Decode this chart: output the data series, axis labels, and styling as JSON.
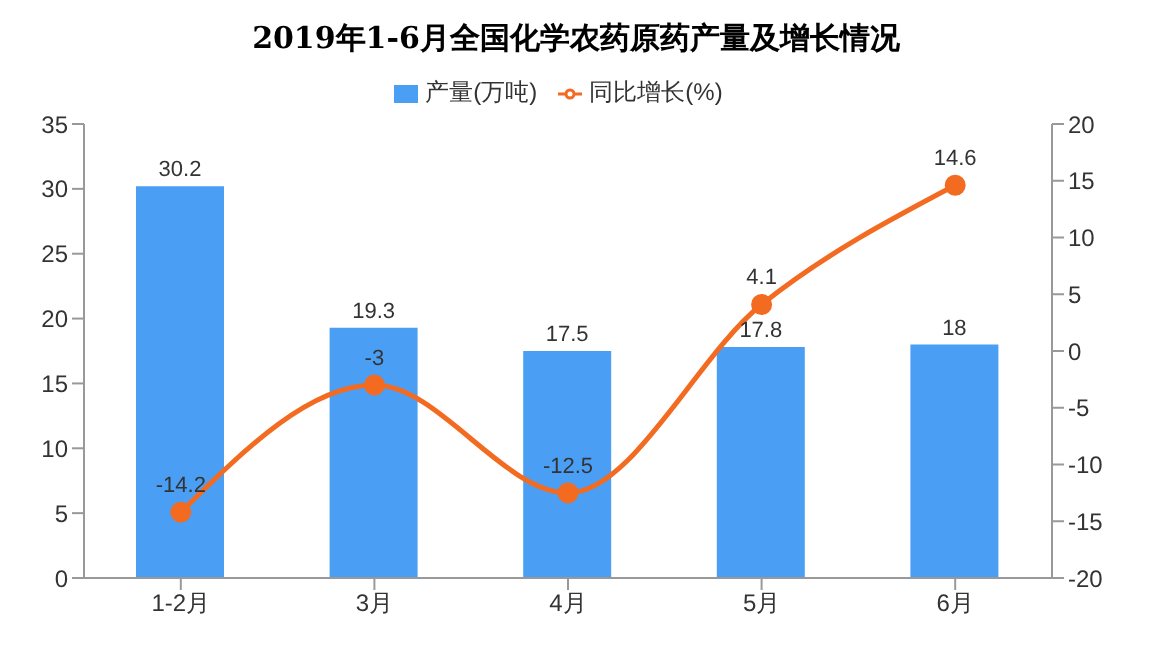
{
  "chart_data": {
    "type": "bar",
    "title": "2019年1-6月全国化学农药原药产量及增长情况",
    "categories": [
      "1-2月",
      "3月",
      "4月",
      "5月",
      "6月"
    ],
    "series": [
      {
        "name": "产量(万吨)",
        "color": "#4a9ff5",
        "values": [
          30.2,
          19.3,
          17.5,
          17.8,
          18
        ]
      },
      {
        "name": "同比增长(%)",
        "type": "line",
        "axis": "y2",
        "color": "#f26b21",
        "values": [
          -14.2,
          -3,
          -12.5,
          4.1,
          14.6
        ]
      }
    ],
    "ylim": [
      0,
      35
    ],
    "yticks": [
      0,
      5,
      10,
      15,
      20,
      25,
      30,
      35
    ],
    "y2lim": [
      -20,
      20
    ],
    "y2ticks": [
      -20,
      -15,
      -10,
      -5,
      0,
      5,
      10,
      15,
      20
    ],
    "legend": "top",
    "data_labels": true,
    "marker": "circle",
    "line_style": "solid"
  }
}
